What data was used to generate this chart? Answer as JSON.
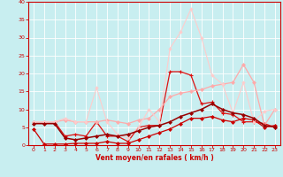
{
  "xlabel": "Vent moyen/en rafales ( km/h )",
  "xlim": [
    -0.5,
    23.5
  ],
  "ylim": [
    0,
    40
  ],
  "yticks": [
    0,
    5,
    10,
    15,
    20,
    25,
    30,
    35,
    40
  ],
  "xticks": [
    0,
    1,
    2,
    3,
    4,
    5,
    6,
    7,
    8,
    9,
    10,
    11,
    12,
    13,
    14,
    15,
    16,
    17,
    18,
    19,
    20,
    21,
    22,
    23
  ],
  "bg_color": "#c8eef0",
  "grid_color": "#aadddd",
  "lines": [
    {
      "x": [
        0,
        1,
        2,
        3,
        4,
        5,
        6,
        7,
        8,
        9,
        10,
        11,
        12,
        13,
        14,
        15,
        16,
        17,
        18,
        19,
        20,
        21,
        22,
        23
      ],
      "y": [
        4.5,
        0.3,
        0.3,
        0.3,
        0.5,
        0.5,
        0.5,
        1.0,
        0.5,
        0.5,
        1.5,
        2.5,
        3.5,
        4.5,
        6.0,
        7.5,
        7.5,
        8.0,
        7.0,
        6.5,
        7.5,
        7.0,
        5.0,
        5.5
      ],
      "color": "#cc0000",
      "lw": 0.9,
      "marker": "D",
      "ms": 2.0,
      "mew": 0.5
    },
    {
      "x": [
        0,
        1,
        2,
        3,
        4,
        5,
        6,
        7,
        8,
        9,
        10,
        11,
        12,
        13,
        14,
        15,
        16,
        17,
        18,
        19,
        20,
        21,
        22,
        23
      ],
      "y": [
        6.5,
        6.5,
        6.5,
        2.5,
        3.0,
        2.5,
        6.5,
        2.5,
        2.5,
        1.0,
        5.0,
        5.5,
        5.5,
        20.5,
        20.5,
        19.5,
        11.5,
        12.0,
        9.0,
        8.5,
        6.5,
        6.5,
        6.0,
        5.0
      ],
      "color": "#dd1111",
      "lw": 0.9,
      "marker": "+",
      "ms": 3.5,
      "mew": 0.8
    },
    {
      "x": [
        0,
        1,
        2,
        3,
        4,
        5,
        6,
        7,
        8,
        9,
        10,
        11,
        12,
        13,
        14,
        15,
        16,
        17,
        18,
        19,
        20,
        21,
        22,
        23
      ],
      "y": [
        6.5,
        6.5,
        6.5,
        7.0,
        6.5,
        6.5,
        6.5,
        7.0,
        6.5,
        6.0,
        7.0,
        7.5,
        10.0,
        13.5,
        14.5,
        15.0,
        15.5,
        16.5,
        17.0,
        17.5,
        22.5,
        17.5,
        5.5,
        10.0
      ],
      "color": "#ffaaaa",
      "lw": 0.9,
      "marker": "D",
      "ms": 2.0,
      "mew": 0.5
    },
    {
      "x": [
        0,
        1,
        2,
        3,
        4,
        5,
        6,
        7,
        8,
        9,
        10,
        11,
        12,
        13,
        14,
        15,
        16,
        17,
        18,
        19,
        20,
        21,
        22,
        23
      ],
      "y": [
        6.5,
        6.5,
        6.5,
        7.5,
        6.5,
        6.5,
        16.0,
        6.5,
        3.0,
        2.0,
        5.0,
        10.0,
        6.5,
        27.0,
        31.5,
        38.0,
        30.0,
        19.5,
        17.0,
        9.0,
        17.5,
        6.5,
        9.5,
        10.0
      ],
      "color": "#ffcccc",
      "lw": 0.8,
      "marker": "D",
      "ms": 1.8,
      "mew": 0.4
    },
    {
      "x": [
        0,
        1,
        2,
        3,
        4,
        5,
        6,
        7,
        8,
        9,
        10,
        11,
        12,
        13,
        14,
        15,
        16,
        17,
        18,
        19,
        20,
        21,
        22,
        23
      ],
      "y": [
        6.0,
        6.0,
        6.0,
        2.0,
        1.5,
        2.0,
        2.5,
        3.0,
        2.5,
        3.0,
        4.0,
        5.0,
        5.5,
        6.5,
        8.0,
        9.0,
        10.0,
        11.5,
        10.0,
        9.0,
        8.5,
        7.5,
        5.5,
        5.0
      ],
      "color": "#990000",
      "lw": 1.1,
      "marker": "D",
      "ms": 2.0,
      "mew": 0.5
    }
  ]
}
